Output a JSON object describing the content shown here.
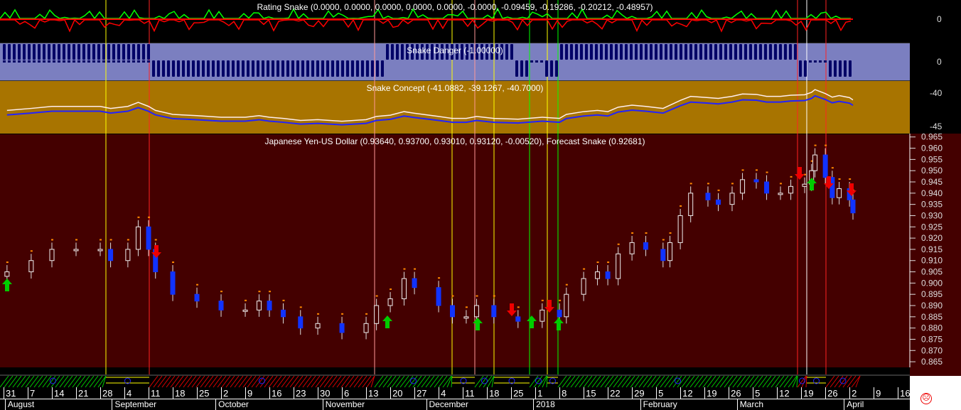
{
  "panels": {
    "rating": {
      "title": "Rating Snake (0.0000, 0.0000, 0.0000, 0.0000, 0.0000, -0.0000, -0.09459, -0.19286, -0.20212, -0.48957)",
      "ticks": [
        "0"
      ],
      "bg": "#000000"
    },
    "danger": {
      "title": "Snake Danger (-1.00000)",
      "ticks": [
        "0"
      ],
      "bg": "#7b7fc0"
    },
    "concept": {
      "title": "Snake Concept (-41.0882, -39.1267, -40.7000)",
      "ticks": [
        "-40",
        "-45"
      ],
      "bg": "#a87400"
    },
    "main": {
      "title": "Japanese Yen-US Dollar (0.93640, 0.93700, 0.93010, 0.93120, -0.00520), Forecast Snake (0.92681)",
      "bg": "#440000"
    }
  },
  "chart_data": {
    "type": "candlestick",
    "title": "Japanese Yen-US Dollar (0.93640, 0.93700, 0.93010, 0.93120, -0.00520), Forecast Snake (0.92681)",
    "ylim": [
      0.8625,
      0.9665
    ],
    "yticks": [
      "0.965",
      "0.960",
      "0.955",
      "0.950",
      "0.945",
      "0.940",
      "0.935",
      "0.930",
      "0.925",
      "0.920",
      "0.915",
      "0.910",
      "0.905",
      "0.900",
      "0.895",
      "0.890",
      "0.885",
      "0.880",
      "0.875",
      "0.870",
      "0.865"
    ],
    "x": [
      "2017-08-01",
      "2017-08-08",
      "2017-08-14",
      "2017-08-21",
      "2017-08-28",
      "2017-08-31",
      "2017-09-05",
      "2017-09-08",
      "2017-09-11",
      "2017-09-13",
      "2017-09-18",
      "2017-09-25",
      "2017-10-02",
      "2017-10-09",
      "2017-10-13",
      "2017-10-16",
      "2017-10-20",
      "2017-10-25",
      "2017-10-30",
      "2017-11-06",
      "2017-11-13",
      "2017-11-16",
      "2017-11-20",
      "2017-11-24",
      "2017-11-27",
      "2017-12-04",
      "2017-12-08",
      "2017-12-12",
      "2017-12-15",
      "2017-12-20",
      "2017-12-27",
      "2018-01-03",
      "2018-01-08",
      "2018-01-10",
      "2018-01-15",
      "2018-01-19",
      "2018-01-22",
      "2018-01-25",
      "2018-01-29",
      "2018-02-02",
      "2018-02-07",
      "2018-02-09",
      "2018-02-12",
      "2018-02-15",
      "2018-02-20",
      "2018-02-23",
      "2018-02-27",
      "2018-03-02",
      "2018-03-06",
      "2018-03-09",
      "2018-03-13",
      "2018-03-16",
      "2018-03-20",
      "2018-03-22",
      "2018-03-23",
      "2018-03-26",
      "2018-03-28",
      "2018-03-30",
      "2018-04-02",
      "2018-04-03"
    ],
    "close": [
      0.905,
      0.91,
      0.915,
      0.915,
      0.915,
      0.91,
      0.915,
      0.925,
      0.915,
      0.905,
      0.895,
      0.892,
      0.888,
      0.888,
      0.892,
      0.888,
      0.885,
      0.88,
      0.882,
      0.878,
      0.882,
      0.89,
      0.893,
      0.902,
      0.898,
      0.89,
      0.885,
      0.885,
      0.89,
      0.885,
      0.883,
      0.888,
      0.885,
      0.895,
      0.902,
      0.905,
      0.902,
      0.913,
      0.918,
      0.915,
      0.91,
      0.918,
      0.93,
      0.94,
      0.937,
      0.935,
      0.94,
      0.946,
      0.945,
      0.94,
      0.94,
      0.943,
      0.944,
      0.95,
      0.957,
      0.947,
      0.938,
      0.942,
      0.937,
      0.9312
    ],
    "xaxis": {
      "days": [
        "31",
        "7",
        "14",
        "21",
        "28",
        "4",
        "11",
        "18",
        "25",
        "2",
        "9",
        "16",
        "23",
        "30",
        "6",
        "13",
        "20",
        "27",
        "4",
        "11",
        "18",
        "25",
        "1",
        "8",
        "15",
        "22",
        "29",
        "5",
        "12",
        "19",
        "26",
        "5",
        "12",
        "19",
        "26",
        "2",
        "9",
        "16"
      ],
      "months": [
        "August",
        "September",
        "October",
        "November",
        "December",
        "2018",
        "February",
        "March",
        "April"
      ]
    }
  },
  "status_icon": "frown-face-icon"
}
